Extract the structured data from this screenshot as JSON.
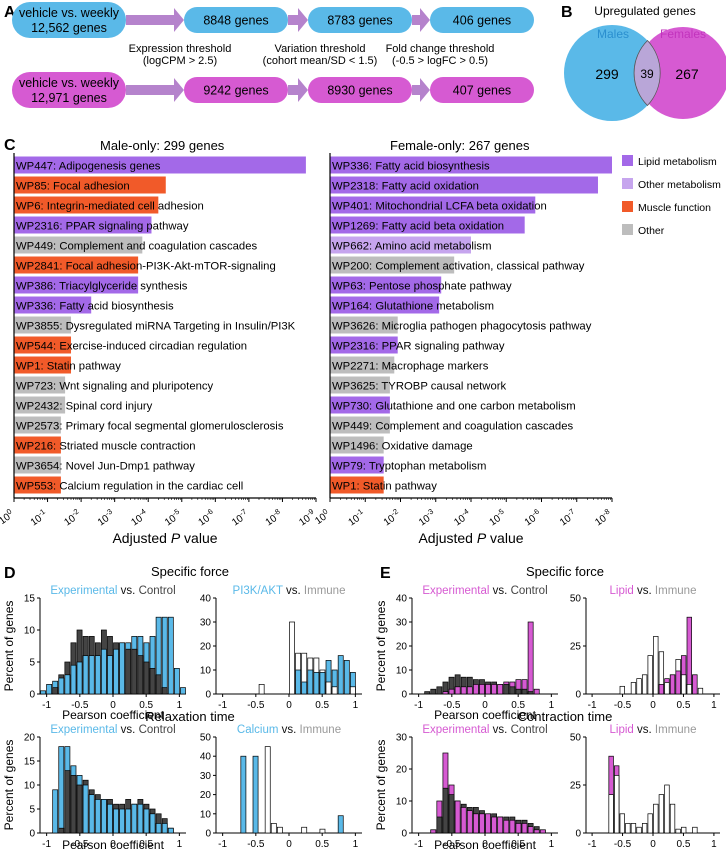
{
  "colors": {
    "male": "#5ab9e8",
    "female": "#d65ad2",
    "lipid": "#a369e8",
    "other_metabolism": "#c6a5ee",
    "muscle": "#f15a29",
    "other": "#bdbdbd",
    "dark": "#444444",
    "arrow": "#b583cc"
  },
  "panel_a": {
    "letter": "A",
    "male_flow": [
      "vehicle vs. weekly\n12,562 genes",
      "8848 genes",
      "8783 genes",
      "406 genes"
    ],
    "female_flow": [
      "vehicle vs. weekly\n12,971 genes",
      "9242 genes",
      "8930 genes",
      "407 genes"
    ],
    "thresholds": [
      "Expression threshold\n(logCPM > 2.5)",
      "Variation threshold\n(cohort mean/SD < 1.5)",
      "Fold change threshold\n(-0.5 > logFC > 0.5)"
    ]
  },
  "panel_b": {
    "letter": "B",
    "title": "Upregulated genes",
    "male_label": "Males",
    "female_label": "Females",
    "male_only": "299",
    "overlap": "39",
    "female_only": "267"
  },
  "panel_c": {
    "letter": "C",
    "male_title": "Male-only:",
    "male_count": "299 genes",
    "female_title": "Female-only:",
    "female_count": "267 genes",
    "xlabel_prefix": "Adjusted ",
    "xlabel_italic": "P",
    "xlabel_suffix": " value",
    "tick_exponents": [
      "0",
      "-1",
      "-2",
      "-3",
      "-4",
      "-5",
      "-6",
      "-7",
      "-8",
      "-9"
    ],
    "female_tick_exponents": [
      "0",
      "-1",
      "-2",
      "-3",
      "-4",
      "-5",
      "-6",
      "-7",
      "-8"
    ],
    "legend": [
      {
        "label": "Lipid metabolism",
        "cat": "lipid"
      },
      {
        "label": "Other metabolism",
        "cat": "other_metabolism"
      },
      {
        "label": "Muscle function",
        "cat": "muscle"
      },
      {
        "label": "Other",
        "cat": "other"
      }
    ]
  },
  "chart_data": [
    {
      "type": "bar",
      "orientation": "horizontal",
      "panel": "C-male",
      "x_scale": "log10",
      "xlim": [
        1,
        1e-09
      ],
      "bars": [
        {
          "id": "WP447",
          "name": "Adipogenesis genes",
          "value": 2e-09,
          "cat": "lipid"
        },
        {
          "id": "WP85",
          "name": "Focal adhesion",
          "value": 3e-05,
          "cat": "muscle"
        },
        {
          "id": "WP6",
          "name": "Integrin-mediated cell adhesion",
          "value": 5e-05,
          "cat": "muscle"
        },
        {
          "id": "WP2316",
          "name": "PPAR signaling pathway",
          "value": 8e-05,
          "cat": "lipid"
        },
        {
          "id": "WP449",
          "name": "Complement and coagulation cascades",
          "value": 0.00015,
          "cat": "other"
        },
        {
          "id": "WP2841",
          "name": "Focal adhesion-PI3K-Akt-mTOR-signaling",
          "value": 0.0002,
          "cat": "muscle"
        },
        {
          "id": "WP386",
          "name": "Triacylglyceride synthesis",
          "value": 0.0002,
          "cat": "lipid"
        },
        {
          "id": "WP336",
          "name": "Fatty acid biosynthesis",
          "value": 0.005,
          "cat": "lipid"
        },
        {
          "id": "WP3855",
          "name": "Dysregulated miRNA Targeting in Insulin/PI3K",
          "value": 0.02,
          "cat": "other"
        },
        {
          "id": "WP544",
          "name": "Exercise-induced circadian regulation",
          "value": 0.02,
          "cat": "muscle"
        },
        {
          "id": "WP1",
          "name": "Statin pathway",
          "value": 0.02,
          "cat": "muscle"
        },
        {
          "id": "WP723",
          "name": "Wnt signaling and pluripotency",
          "value": 0.03,
          "cat": "other"
        },
        {
          "id": "WP2432",
          "name": "Spinal cord injury",
          "value": 0.03,
          "cat": "other"
        },
        {
          "id": "WP2573",
          "name": "Primary focal segmental glomerulosclerosis",
          "value": 0.04,
          "cat": "other"
        },
        {
          "id": "WP216",
          "name": "Striated muscle contraction",
          "value": 0.04,
          "cat": "muscle"
        },
        {
          "id": "WP3654",
          "name": "Novel Jun-Dmp1 pathway",
          "value": 0.04,
          "cat": "other"
        },
        {
          "id": "WP553",
          "name": "Calcium regulation in the cardiac cell",
          "value": 0.04,
          "cat": "muscle"
        }
      ]
    },
    {
      "type": "bar",
      "orientation": "horizontal",
      "panel": "C-female",
      "x_scale": "log10",
      "xlim": [
        1,
        1e-08
      ],
      "bars": [
        {
          "id": "WP336",
          "name": "Fatty acid biosynthesis",
          "value": 1e-08,
          "cat": "lipid"
        },
        {
          "id": "WP2318",
          "name": "Fatty acid oxidation",
          "value": 2.5e-08,
          "cat": "lipid"
        },
        {
          "id": "WP401",
          "name": "Mitochondrial LCFA beta oxidation",
          "value": 1.5e-06,
          "cat": "lipid"
        },
        {
          "id": "WP1269",
          "name": "Fatty acid beta oxidation",
          "value": 3e-06,
          "cat": "lipid"
        },
        {
          "id": "WP662",
          "name": "Amino acid metabolism",
          "value": 0.0001,
          "cat": "other_metabolism"
        },
        {
          "id": "WP200",
          "name": "Complement activation, classical pathway",
          "value": 0.0003,
          "cat": "other"
        },
        {
          "id": "WP63",
          "name": "Pentose phosphate pathway",
          "value": 0.0007,
          "cat": "lipid"
        },
        {
          "id": "WP164",
          "name": "Glutathione metabolism",
          "value": 0.0008,
          "cat": "lipid"
        },
        {
          "id": "WP3626",
          "name": "Microglia pathogen phagocytosis pathway",
          "value": 0.012,
          "cat": "other"
        },
        {
          "id": "WP2316",
          "name": "PPAR signaling pathway",
          "value": 0.012,
          "cat": "lipid"
        },
        {
          "id": "WP2271",
          "name": "Macrophage markers",
          "value": 0.015,
          "cat": "other"
        },
        {
          "id": "WP3625",
          "name": "TYROBP causal network",
          "value": 0.02,
          "cat": "other"
        },
        {
          "id": "WP730",
          "name": "Glutathione and one carbon metabolism",
          "value": 0.02,
          "cat": "lipid"
        },
        {
          "id": "WP449",
          "name": "Complement and coagulation cascades",
          "value": 0.02,
          "cat": "other"
        },
        {
          "id": "WP1496",
          "name": "Oxidative damage",
          "value": 0.03,
          "cat": "other"
        },
        {
          "id": "WP79",
          "name": "Tryptophan metabolism",
          "value": 0.03,
          "cat": "lipid"
        },
        {
          "id": "WP1",
          "name": "Statin pathway",
          "value": 0.03,
          "cat": "muscle"
        }
      ]
    }
  ],
  "histograms": {
    "xlabel": "Pearson coefficient",
    "ylabel": "Percent of genes",
    "x_ticks": [
      "-1",
      "-0.5",
      "0",
      "0.5",
      "1"
    ],
    "sections": [
      {
        "letter": "D",
        "title": "Specific force",
        "panel": "D-top"
      },
      {
        "letter": "",
        "title": "Relaxation time",
        "panel": "D-bottom"
      },
      {
        "letter": "E",
        "title": "Specific force",
        "panel": "E-top"
      },
      {
        "letter": "",
        "title": "Contraction time",
        "panel": "E-bottom"
      }
    ],
    "plots": [
      {
        "id": "D1",
        "subtitle_a": "Experimental",
        "subtitle_b": "Control",
        "color_a": "#5ab9e8",
        "color_b": "#444444",
        "ylim": [
          0,
          15
        ],
        "y_ticks": [
          "0",
          "5",
          "10",
          "15"
        ],
        "labels": false,
        "series_a": [
          0.5,
          1.5,
          2,
          2.5,
          3,
          4.5,
          5,
          6,
          6,
          6,
          7,
          6,
          7,
          8,
          8,
          9,
          9,
          8,
          9,
          12,
          12,
          12,
          4,
          1
        ],
        "series_b": [
          0,
          0,
          1,
          3,
          5,
          8,
          10,
          9,
          9,
          8,
          10,
          9,
          8,
          8,
          7,
          7,
          6,
          5,
          4,
          3,
          1,
          0,
          0,
          0
        ]
      },
      {
        "id": "D2",
        "subtitle_a": "PI3K/AKT",
        "subtitle_b": "Immune",
        "color_a": "#5ab9e8",
        "color_b": "#ffffff",
        "ylim": [
          0,
          40
        ],
        "y_ticks": [
          "0",
          "10",
          "20",
          "30",
          "40"
        ],
        "labels": false,
        "series_a": [
          0,
          0,
          0,
          0,
          0,
          0,
          0,
          0,
          0,
          0,
          0,
          0,
          0,
          10,
          5,
          10,
          9,
          9,
          14,
          10,
          16,
          14,
          9,
          0
        ],
        "series_b": [
          0,
          0,
          0,
          0,
          0,
          0,
          0,
          4,
          0,
          0,
          0,
          0,
          30,
          17,
          17,
          15,
          15,
          10,
          5,
          3,
          0,
          0,
          3,
          0
        ]
      },
      {
        "id": "D3",
        "subtitle_a": "Experimental",
        "subtitle_b": "Control",
        "color_a": "#5ab9e8",
        "color_b": "#444444",
        "ylim": [
          0,
          20
        ],
        "y_ticks": [
          "0",
          "5",
          "10",
          "15",
          "20"
        ],
        "labels": false,
        "series_a": [
          0,
          0,
          9,
          18,
          18,
          14,
          12,
          10,
          8,
          7,
          7,
          6,
          5,
          5,
          5,
          6,
          6,
          5,
          4,
          2,
          2,
          1,
          0,
          0
        ],
        "series_b": [
          0,
          0,
          0,
          1,
          13,
          12,
          10,
          11,
          9,
          8,
          7,
          7,
          6,
          6,
          7,
          6,
          7,
          6,
          5,
          4,
          3,
          1,
          0,
          0
        ]
      },
      {
        "id": "D4",
        "subtitle_a": "Calcium",
        "subtitle_b": "Immune",
        "color_a": "#5ab9e8",
        "color_b": "#ffffff",
        "ylim": [
          0,
          50
        ],
        "y_ticks": [
          "0",
          "10",
          "20",
          "30",
          "40",
          "50"
        ],
        "labels": false,
        "series_a": [
          0,
          0,
          0,
          0,
          40,
          0,
          40,
          0,
          0,
          0,
          0,
          0,
          0,
          0,
          0,
          0,
          0,
          0,
          0,
          0,
          9,
          0,
          0,
          0
        ],
        "series_b": [
          0,
          0,
          0,
          0,
          0,
          0,
          0,
          0,
          45,
          5,
          3,
          0,
          0,
          0,
          3,
          0,
          0,
          2,
          0,
          0,
          0,
          0,
          0,
          0
        ]
      },
      {
        "id": "E1",
        "subtitle_a": "Experimental",
        "subtitle_b": "Control",
        "color_a": "#d65ad2",
        "color_b": "#444444",
        "ylim": [
          0,
          40
        ],
        "y_ticks": [
          "0",
          "10",
          "20",
          "30",
          "40"
        ],
        "labels": false,
        "series_a": [
          0,
          0,
          0,
          0,
          0,
          1,
          2,
          3,
          3,
          3,
          4,
          4,
          4,
          4,
          4,
          5,
          5,
          6,
          6,
          30,
          2,
          0,
          0,
          0
        ],
        "series_b": [
          0,
          0,
          1,
          2,
          3,
          5,
          7,
          8,
          7,
          7,
          6,
          6,
          5,
          5,
          4,
          4,
          3,
          2,
          2,
          1,
          0,
          0,
          0,
          0
        ]
      },
      {
        "id": "E2",
        "subtitle_a": "Lipid",
        "subtitle_b": "Immune",
        "color_a": "#d65ad2",
        "color_b": "#ffffff",
        "ylim": [
          0,
          50
        ],
        "y_ticks": [
          "0",
          "25",
          "50"
        ],
        "labels": false,
        "series_a": [
          0,
          0,
          0,
          0,
          0,
          0,
          0,
          0,
          0,
          0,
          0,
          0,
          0,
          5,
          8,
          10,
          12,
          20,
          40,
          10,
          0,
          0,
          0,
          0
        ],
        "series_b": [
          0,
          0,
          0,
          0,
          0,
          0,
          4,
          0,
          6,
          8,
          10,
          20,
          30,
          22,
          6,
          10,
          18,
          10,
          5,
          10,
          3,
          0,
          0,
          0
        ]
      },
      {
        "id": "E3",
        "subtitle_a": "Experimental",
        "subtitle_b": "Control",
        "color_a": "#d65ad2",
        "color_b": "#444444",
        "ylim": [
          0,
          30
        ],
        "y_ticks": [
          "0",
          "10",
          "20",
          "30"
        ],
        "labels": false,
        "series_a": [
          0,
          0,
          0,
          1,
          10,
          25,
          15,
          10,
          8,
          7,
          6,
          6,
          6,
          5,
          5,
          4,
          4,
          3,
          3,
          2,
          1,
          1,
          0,
          0
        ],
        "series_b": [
          0,
          0,
          0,
          1,
          5,
          14,
          12,
          10,
          9,
          8,
          8,
          7,
          6,
          6,
          5,
          5,
          5,
          4,
          4,
          3,
          2,
          1,
          0,
          0
        ]
      },
      {
        "id": "E4",
        "subtitle_a": "Lipid",
        "subtitle_b": "Immune",
        "color_a": "#d65ad2",
        "color_b": "#ffffff",
        "ylim": [
          0,
          50
        ],
        "y_ticks": [
          "0",
          "25",
          "50"
        ],
        "labels": false,
        "series_a": [
          0,
          0,
          0,
          0,
          40,
          35,
          0,
          0,
          0,
          0,
          0,
          0,
          0,
          0,
          0,
          0,
          0,
          0,
          0,
          0,
          0,
          0,
          0,
          0
        ],
        "series_b": [
          0,
          0,
          0,
          0,
          20,
          30,
          10,
          5,
          5,
          3,
          5,
          10,
          15,
          20,
          25,
          15,
          2,
          3,
          0,
          3,
          0,
          0,
          0,
          0
        ]
      }
    ]
  }
}
